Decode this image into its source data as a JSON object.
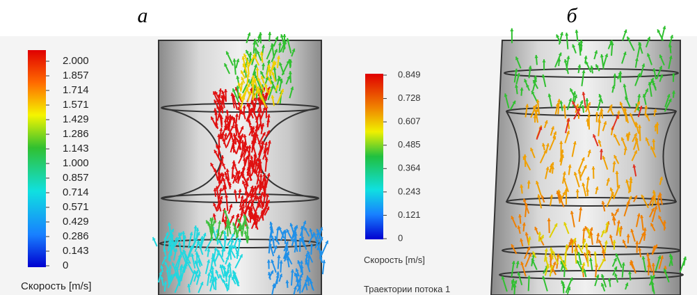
{
  "panels": [
    {
      "label": "а",
      "legend": {
        "ticks": [
          "2.000",
          "1.857",
          "1.714",
          "1.571",
          "1.429",
          "1.286",
          "1.143",
          "1.000",
          "0.857",
          "0.714",
          "0.571",
          "0.429",
          "0.286",
          "0.143",
          "0"
        ],
        "title": "Скорость [m/s]"
      }
    },
    {
      "label": "б",
      "legend": {
        "ticks": [
          "0.849",
          "0.728",
          "0.607",
          "0.485",
          "0.364",
          "0.243",
          "0.121",
          "0"
        ],
        "title": "Скорость [m/s]"
      },
      "caption": "Траектории потока 1"
    }
  ]
}
